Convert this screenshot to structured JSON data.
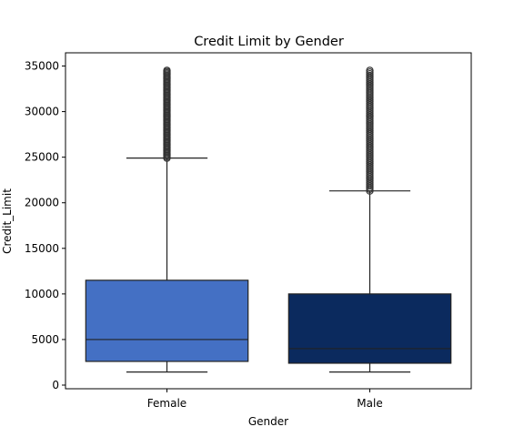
{
  "chart_data": {
    "type": "box",
    "title": "Credit Limit by Gender",
    "xlabel": "Gender",
    "ylabel": "Credit_Limit",
    "categories": [
      "Female",
      "Male"
    ],
    "ylim": [
      -400,
      36450
    ],
    "yticks": [
      0,
      5000,
      10000,
      15000,
      20000,
      25000,
      30000,
      35000
    ],
    "grid": false,
    "series": [
      {
        "category": "Female",
        "color": "#4470c4",
        "whisker_low": 1438,
        "q1": 2600,
        "median": 5000,
        "q3": 11500,
        "whisker_high": 24900,
        "outlier_range": [
          24900,
          34516
        ]
      },
      {
        "category": "Male",
        "color": "#0b2a5e",
        "whisker_low": 1438,
        "q1": 2400,
        "median": 4000,
        "q3": 10000,
        "whisker_high": 21300,
        "outlier_range": [
          21300,
          34516
        ]
      }
    ]
  }
}
